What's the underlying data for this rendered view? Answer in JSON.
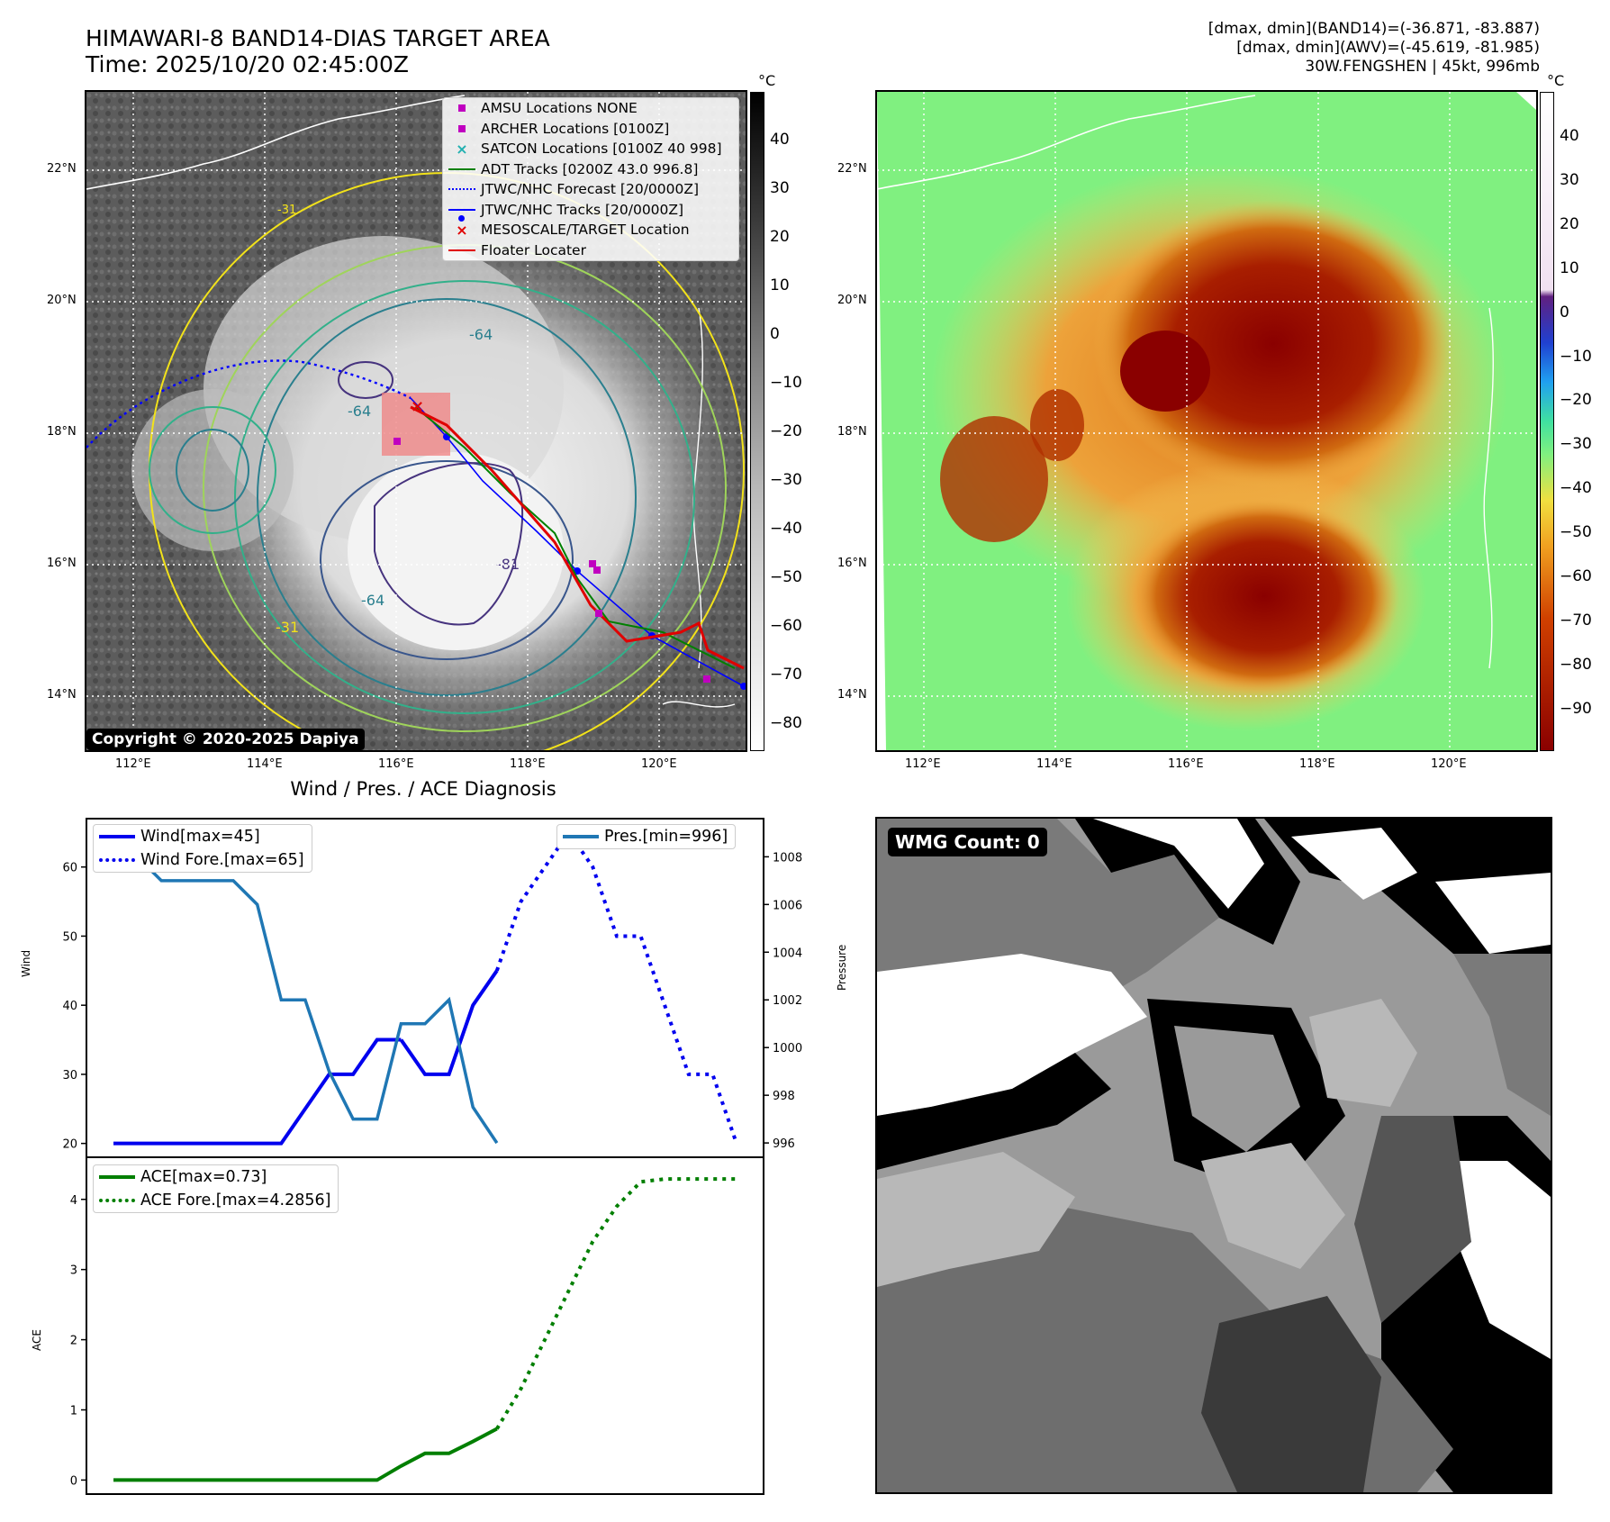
{
  "header": {
    "title_line1": "HIMAWARI-8 BAND14-DIAS TARGET AREA",
    "title_line2": "Time: 2025/10/20 02:45:00Z",
    "stats_line1": "[dmax, dmin](BAND14)=(-36.871, -83.887)",
    "stats_line2": "[dmax, dmin](AWV)=(-45.619, -81.985)",
    "stats_line3": "30W.FENGSHEN | 45kt, 996mb"
  },
  "map": {
    "lat_labels": [
      "22°N",
      "20°N",
      "18°N",
      "16°N",
      "14°N"
    ],
    "lon_labels": [
      "112°E",
      "114°E",
      "116°E",
      "118°E",
      "120°E"
    ],
    "contour_labels": [
      "-64",
      "-64",
      "-64",
      "-81",
      "-31"
    ],
    "legend": [
      {
        "label": "AMSU Locations NONE",
        "marker": "square",
        "color": "#c000c0"
      },
      {
        "label": "ARCHER Locations [0100Z]",
        "marker": "square",
        "color": "#c000c0"
      },
      {
        "label": "SATCON Locations [0100Z 40 998]",
        "marker": "x",
        "color": "#20b0b0"
      },
      {
        "label": "ADT Tracks [0200Z 43.0 996.8]",
        "marker": "line",
        "color": "#008000"
      },
      {
        "label": "JTWC/NHC Forecast [20/0000Z]",
        "marker": "dotted",
        "color": "#0000ff"
      },
      {
        "label": "JTWC/NHC Tracks [20/0000Z]",
        "marker": "line-dot",
        "color": "#0000ff"
      },
      {
        "label": "MESOSCALE/TARGET Location",
        "marker": "x",
        "color": "#e00000"
      },
      {
        "label": "Floater Locater",
        "marker": "line",
        "color": "#e00000"
      }
    ],
    "copyright": "Copyright © 2020-2025 Dapiya"
  },
  "colorbar_left": {
    "unit": "°C",
    "ticks": [
      "40",
      "30",
      "20",
      "10",
      "0",
      "−10",
      "−20",
      "−30",
      "−40",
      "−50",
      "−60",
      "−70",
      "−80"
    ]
  },
  "colorbar_right": {
    "unit": "°C",
    "ticks": [
      "40",
      "30",
      "20",
      "10",
      "0",
      "−10",
      "−20",
      "−30",
      "−40",
      "−50",
      "−60",
      "−70",
      "−80",
      "−90"
    ]
  },
  "diag": {
    "title": "Wind / Pres. / ACE Diagnosis",
    "wind_ylabel": "Wind",
    "pres_ylabel": "Pressure",
    "ace_ylabel": "ACE",
    "wind_ticks": [
      "60",
      "50",
      "40",
      "30",
      "20"
    ],
    "pres_ticks": [
      "1008",
      "1006",
      "1004",
      "1002",
      "1000",
      "998",
      "996"
    ],
    "ace_ticks": [
      "4",
      "3",
      "2",
      "1",
      "0"
    ],
    "legend_wind": "Wind[max=45]",
    "legend_wind_fore": "Wind Fore.[max=65]",
    "legend_pres": "Pres.[min=996]",
    "legend_ace": "ACE[max=0.73]",
    "legend_ace_fore": "ACE Fore.[max=4.2856]"
  },
  "wmg": {
    "label": "WMG Count: 0"
  },
  "chart_data": [
    {
      "type": "line",
      "title": "Wind / Pres. / ACE Diagnosis",
      "ylabel": "Wind",
      "ylim": [
        18,
        67
      ],
      "series": [
        {
          "name": "Wind[max=45]",
          "x": [
            0,
            1,
            2,
            3,
            4,
            5,
            6,
            7,
            8,
            9,
            10,
            11,
            12
          ],
          "values": [
            20,
            20,
            20,
            20,
            20,
            20,
            20,
            20,
            25,
            30,
            30,
            35,
            35
          ]
        },
        {
          "name": "Wind[max=45] (cont.)",
          "x": [
            12,
            13,
            14,
            15,
            16
          ],
          "values": [
            35,
            30,
            30,
            40,
            45
          ]
        },
        {
          "name": "Wind Fore.[max=65]",
          "x": [
            16,
            17,
            18,
            19,
            20,
            21,
            22,
            23,
            24,
            25,
            26
          ],
          "values": [
            45,
            55,
            60,
            65,
            60,
            50,
            50,
            40,
            30,
            30,
            20
          ]
        }
      ]
    },
    {
      "type": "line",
      "ylabel": "Pressure",
      "ylim": [
        995.4,
        1009.6
      ],
      "series": [
        {
          "name": "Pres.[min=996]",
          "x": [
            0,
            1,
            2,
            3,
            4,
            5,
            6,
            7,
            8,
            9,
            10,
            11,
            12,
            13,
            14,
            15,
            16
          ],
          "values": [
            1008,
            1008,
            1007,
            1007,
            1007,
            1007,
            1006,
            1002,
            1002,
            999,
            997,
            997,
            1001,
            1001,
            1002,
            997.5,
            996
          ]
        }
      ]
    },
    {
      "type": "line",
      "ylabel": "ACE",
      "ylim": [
        -0.2,
        4.6
      ],
      "series": [
        {
          "name": "ACE[max=0.73]",
          "x": [
            0,
            1,
            2,
            3,
            4,
            5,
            6,
            7,
            8,
            9,
            10,
            11,
            12,
            13,
            14,
            15,
            16
          ],
          "values": [
            0,
            0,
            0,
            0,
            0,
            0,
            0,
            0,
            0,
            0,
            0,
            0,
            0.2,
            0.38,
            0.38,
            0.55,
            0.73
          ]
        },
        {
          "name": "ACE Fore.[max=4.2856]",
          "x": [
            16,
            17,
            18,
            19,
            20,
            21,
            22,
            23,
            24,
            25,
            26
          ],
          "values": [
            0.73,
            1.3,
            2.0,
            2.7,
            3.4,
            3.9,
            4.25,
            4.29,
            4.29,
            4.29,
            4.29
          ]
        }
      ]
    }
  ]
}
